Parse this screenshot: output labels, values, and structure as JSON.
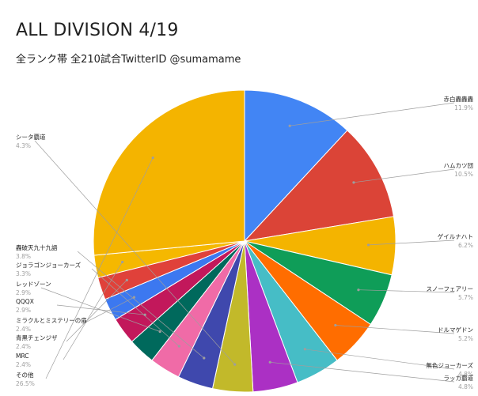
{
  "chart_data": {
    "type": "pie",
    "title": "ALL DIVISION 4/19",
    "subtitle": "全ランク帯 全210試合TwitterID @sumamame",
    "slices": [
      {
        "label": "赤白轟轟轟",
        "value": 11.9,
        "pct_text": "11.9%",
        "color": "#4285f4"
      },
      {
        "label": "ハムカツ団",
        "value": 10.5,
        "pct_text": "10.5%",
        "color": "#db4437"
      },
      {
        "label": "ゲイルナハト",
        "value": 6.2,
        "pct_text": "6.2%",
        "color": "#f4b400"
      },
      {
        "label": "スノーフェアリー",
        "value": 5.7,
        "pct_text": "5.7%",
        "color": "#0f9d58"
      },
      {
        "label": "ドルマゲドン",
        "value": 5.2,
        "pct_text": "5.2%",
        "color": "#ff6d00"
      },
      {
        "label": "無色ジョーカーズ",
        "value": 4.8,
        "pct_text": "4.8%",
        "color": "#46bdc6"
      },
      {
        "label": "ラッカ覇道",
        "value": 4.8,
        "pct_text": "4.8%",
        "color": "#ab30c4"
      },
      {
        "label": "シータ覇道",
        "value": 4.3,
        "pct_text": "4.3%",
        "color": "#c2b92a"
      },
      {
        "label": "轟破天九十九語",
        "value": 3.8,
        "pct_text": "3.8%",
        "color": "#3f48ad"
      },
      {
        "label": "ジョラゴンジョーカーズ",
        "value": 3.3,
        "pct_text": "3.3%",
        "color": "#f06ba7"
      },
      {
        "label": "レッドゾーン",
        "value": 2.9,
        "pct_text": "2.9%",
        "color": "#00695c"
      },
      {
        "label": "QQQX",
        "value": 2.9,
        "pct_text": "2.9%",
        "color": "#c2185b"
      },
      {
        "label": "ミラクルとミステリーの扉",
        "value": 2.4,
        "pct_text": "2.4%",
        "color": "#3c78f0"
      },
      {
        "label": "青黒チェンジザ",
        "value": 2.4,
        "pct_text": "2.4%",
        "color": "#e0413a"
      },
      {
        "label": "MRC",
        "value": 2.4,
        "pct_text": "2.4%",
        "color": "#f5b800"
      },
      {
        "label": "その他",
        "value": 26.5,
        "pct_text": "26.5%",
        "color": "#f4b400"
      }
    ],
    "legend": "none"
  }
}
